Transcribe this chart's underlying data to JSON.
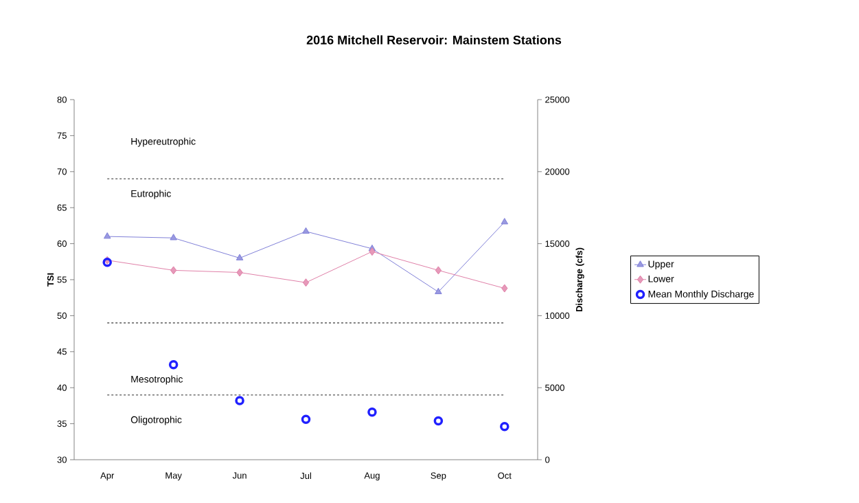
{
  "chart_data": {
    "type": "line",
    "title": "2016 Mitchell Reservoir: Mainstem Stations",
    "ylabel": "TSI",
    "y2label": "Discharge (cfs)",
    "categories": [
      "Apr",
      "May",
      "Jun",
      "Jul",
      "Aug",
      "Sep",
      "Oct"
    ],
    "series": [
      {
        "name": "Upper",
        "color": "#8080d8",
        "marker": "triangle",
        "values": [
          61,
          60.8,
          58,
          61.7,
          59.3,
          53.3,
          63
        ]
      },
      {
        "name": "Lower",
        "color": "#e080a8",
        "marker": "diamond",
        "values": [
          57.7,
          56.3,
          56,
          54.6,
          58.9,
          56.3,
          53.8
        ]
      },
      {
        "name": "Mean Monthly Discharge",
        "type": "scatter",
        "axis": "y2",
        "color": "#2020ff",
        "marker": "circle",
        "values": [
          13700,
          6600,
          4100,
          2800,
          3300,
          2700,
          2300
        ]
      }
    ],
    "ylim": [
      30,
      80
    ],
    "yticks": [
      30,
      35,
      40,
      45,
      50,
      55,
      60,
      65,
      70,
      75,
      80
    ],
    "y2lim": [
      0,
      25000
    ],
    "y2ticks": [
      0,
      5000,
      10000,
      15000,
      20000,
      25000
    ],
    "ref_lines": [
      {
        "axis": "y",
        "value": 69,
        "color": "#707070",
        "line_style": "dashed"
      },
      {
        "axis": "y",
        "value": 49,
        "color": "#707070",
        "line_style": "dashed"
      },
      {
        "axis": "y",
        "value": 39,
        "color": "#707070",
        "line_style": "dashed"
      }
    ],
    "annotations": [
      "Hypereutrophic",
      "Eutrophic",
      "Mesotrophic",
      "Oligotrophic"
    ],
    "grid": false,
    "legend": "right"
  }
}
